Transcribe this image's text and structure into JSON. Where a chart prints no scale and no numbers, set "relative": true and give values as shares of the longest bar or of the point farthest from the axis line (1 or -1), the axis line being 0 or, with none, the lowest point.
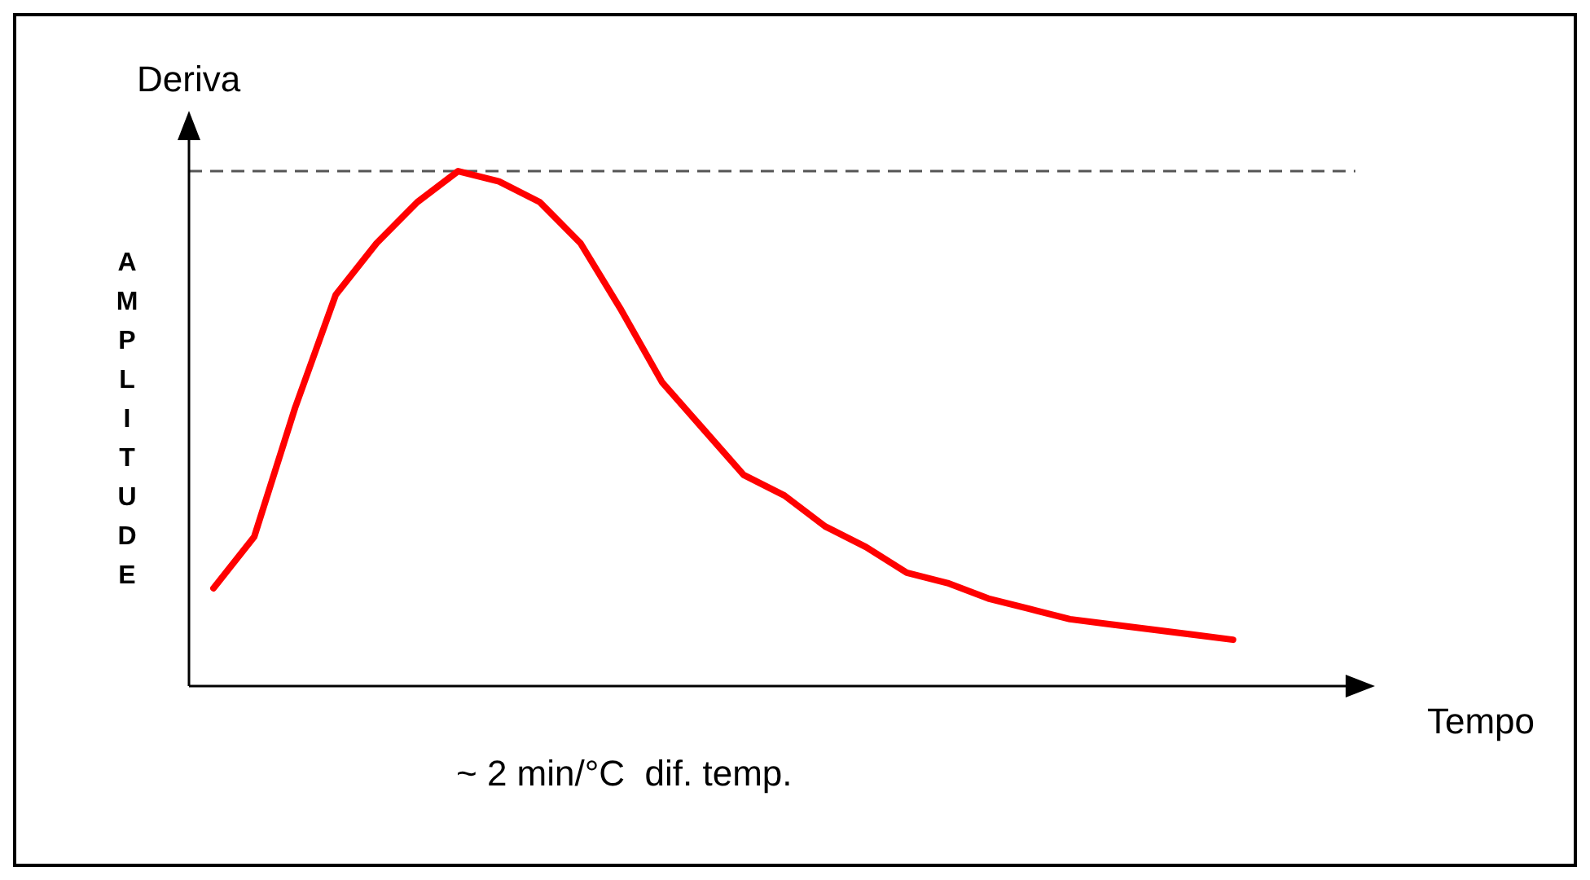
{
  "chart_data": {
    "type": "line",
    "relative": true,
    "ylabel": "AMPLITUDE",
    "xlabel": "Tempo",
    "annotations": [
      "Deriva",
      "~ 2 min/°C  dif. temp."
    ],
    "categories": [
      null,
      null,
      null,
      null,
      null,
      null,
      null,
      null,
      null,
      null,
      null,
      null,
      null,
      null,
      null,
      null,
      null,
      null,
      null,
      null,
      null,
      null,
      null,
      null,
      null,
      null
    ],
    "series": [
      {
        "color": "#ff0000",
        "values": [
          0.19,
          0.29,
          0.54,
          0.76,
          0.86,
          0.94,
          1,
          0.98,
          0.94,
          0.86,
          0.73,
          0.59,
          0.5,
          0.41,
          0.37,
          0.31,
          0.27,
          0.22,
          0.2,
          0.17,
          0.15,
          0.13,
          0.12,
          0.11,
          0.1,
          0.09
        ]
      }
    ],
    "ref_lines": [
      {
        "axis": "y",
        "value": 1,
        "color": "#555555",
        "line_style": "dashed"
      }
    ],
    "grid": false,
    "marker": "none",
    "line_style": "solid"
  }
}
